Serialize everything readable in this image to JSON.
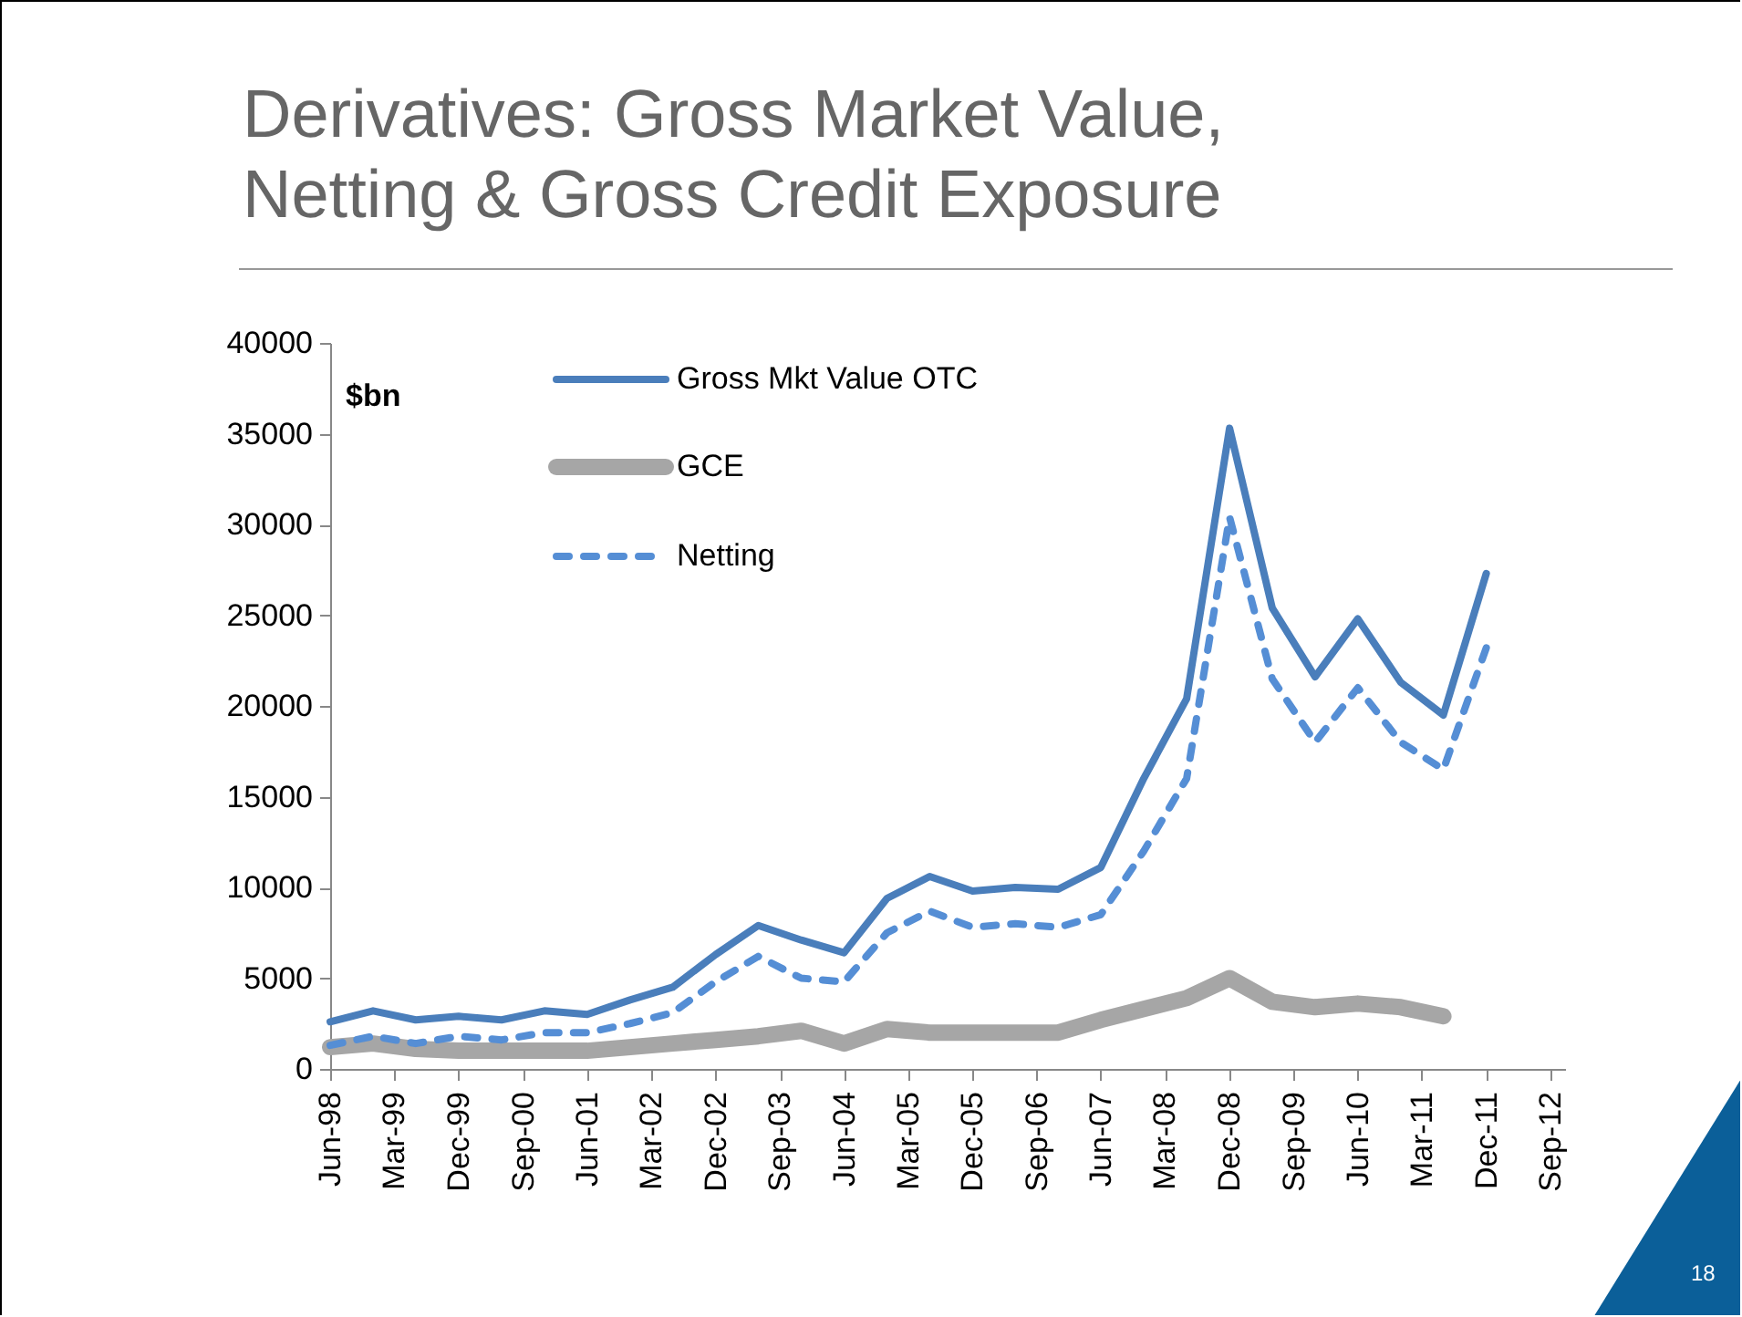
{
  "chart_data": {
    "type": "line",
    "title": "Derivatives: Gross Market Value, Netting & Gross Credit Exposure",
    "ylabel": "$bn",
    "x": [
      "1998-06",
      "1998-12",
      "1999-06",
      "1999-12",
      "2000-06",
      "2000-12",
      "2001-06",
      "2001-12",
      "2002-06",
      "2002-12",
      "2003-06",
      "2003-12",
      "2004-06",
      "2004-12",
      "2005-06",
      "2005-12",
      "2006-06",
      "2006-12",
      "2007-06",
      "2007-12",
      "2008-06",
      "2008-12",
      "2009-06",
      "2009-12",
      "2010-06",
      "2010-12",
      "2011-06",
      "2011-12"
    ],
    "series": [
      {
        "name": "Gross Mkt Value OTC",
        "color": "#4a7ebb",
        "line_style": "solid",
        "values": [
          2600,
          3200,
          2700,
          2900,
          2700,
          3200,
          3000,
          3800,
          4500,
          6300,
          7900,
          7100,
          6400,
          9400,
          10600,
          9800,
          10000,
          9900,
          11100,
          16000,
          20400,
          35300,
          25400,
          21600,
          24800,
          21300,
          19500,
          27300
        ]
      },
      {
        "name": "GCE",
        "color": "#a6a6a6",
        "line_style": "solid",
        "values": [
          1200,
          1400,
          1100,
          1000,
          1000,
          1000,
          1000,
          1200,
          1400,
          1600,
          1800,
          2100,
          1400,
          2200,
          2000,
          2000,
          2000,
          2000,
          2700,
          3300,
          3900,
          5000,
          3700,
          3400,
          3600,
          3400,
          2900,
          null
        ]
      },
      {
        "name": "Netting",
        "color": "#558ed5",
        "line_style": "dashed",
        "values": [
          1300,
          1800,
          1400,
          1800,
          1600,
          2000,
          2000,
          2500,
          3100,
          4800,
          6200,
          5000,
          4800,
          7500,
          8700,
          7800,
          8000,
          7800,
          8500,
          12000,
          16000,
          30400,
          21500,
          18000,
          21000,
          18000,
          16500,
          23200
        ]
      }
    ],
    "xlim": [
      "1998-06",
      "2012-11"
    ],
    "xticks": [
      {
        "value": "1998-06",
        "label": "Jun-98"
      },
      {
        "value": "1999-03",
        "label": "Mar-99"
      },
      {
        "value": "1999-12",
        "label": "Dec-99"
      },
      {
        "value": "2000-09",
        "label": "Sep-00"
      },
      {
        "value": "2001-06",
        "label": "Jun-01"
      },
      {
        "value": "2002-03",
        "label": "Mar-02"
      },
      {
        "value": "2002-12",
        "label": "Dec-02"
      },
      {
        "value": "2003-09",
        "label": "Sep-03"
      },
      {
        "value": "2004-06",
        "label": "Jun-04"
      },
      {
        "value": "2005-03",
        "label": "Mar-05"
      },
      {
        "value": "2005-12",
        "label": "Dec-05"
      },
      {
        "value": "2006-09",
        "label": "Sep-06"
      },
      {
        "value": "2007-06",
        "label": "Jun-07"
      },
      {
        "value": "2008-03",
        "label": "Mar-08"
      },
      {
        "value": "2008-12",
        "label": "Dec-08"
      },
      {
        "value": "2009-09",
        "label": "Sep-09"
      },
      {
        "value": "2010-06",
        "label": "Jun-10"
      },
      {
        "value": "2011-03",
        "label": "Mar-11"
      },
      {
        "value": "2011-12",
        "label": "Dec-11"
      },
      {
        "value": "2012-09",
        "label": "Sep-12"
      }
    ],
    "ylim": [
      0,
      40000
    ],
    "yticks": [
      0,
      5000,
      10000,
      15000,
      20000,
      25000,
      30000,
      35000,
      40000
    ],
    "grid": false,
    "legend": "top left",
    "annotations": [
      "18"
    ]
  }
}
